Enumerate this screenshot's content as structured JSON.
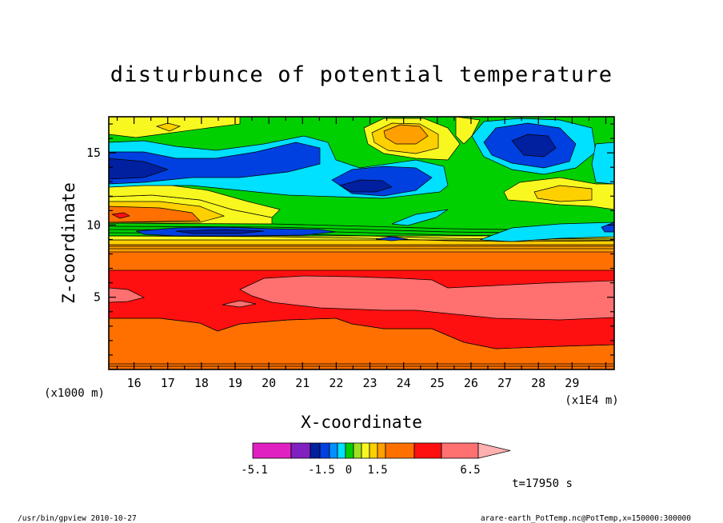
{
  "chart_data": {
    "type": "heatmap",
    "title": "disturbunce of potential temperature",
    "xlabel": "X-coordinate",
    "ylabel": "Z-coordinate",
    "x_unit_label": "(x1E4 m)",
    "y_unit_label": "(x1000 m)",
    "x_ticks": [
      "16",
      "17",
      "18",
      "19",
      "20",
      "21",
      "22",
      "23",
      "24",
      "25",
      "26",
      "27",
      "28",
      "29"
    ],
    "y_ticks": [
      "5",
      "10",
      "15"
    ],
    "xlim": [
      15.25,
      30.25
    ],
    "ylim": [
      0,
      17.5
    ],
    "colorbar": {
      "labels": [
        "-5.1",
        "-1.5",
        "0",
        "1.5",
        "6.5"
      ],
      "colors": [
        "#e020c0",
        "#8020c0",
        "#0020a0",
        "#0040e0",
        "#0090ff",
        "#00e0ff",
        "#00d000",
        "#a0e020",
        "#f8f820",
        "#ffd000",
        "#ffa000",
        "#ff7000",
        "#ff1010",
        "#ff7070",
        "#ffb0b0"
      ]
    },
    "time_label": "t=17950 s"
  },
  "footer": {
    "left": "/usr/bin/gpview   2010-10-27",
    "right": "arare-earth_PotTemp.nc@PotTemp,x=150000:300000"
  }
}
